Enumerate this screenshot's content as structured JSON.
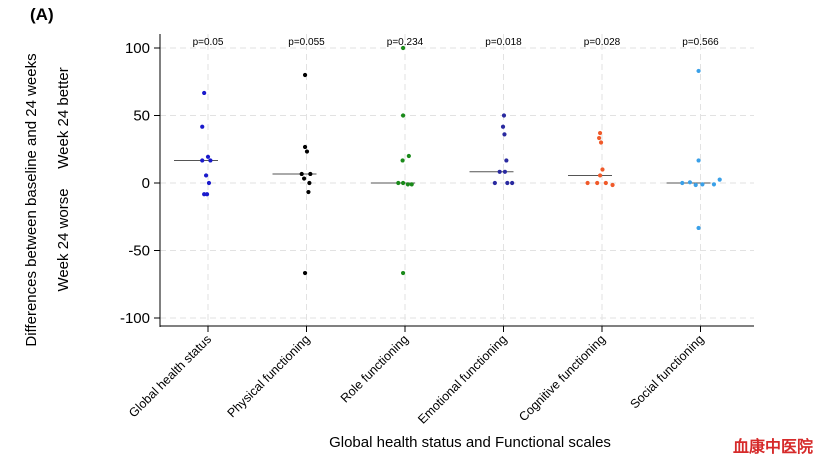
{
  "panel_label": "(A)",
  "watermark": "血康中医院",
  "colors": {
    "axis": "#000000",
    "grid": "#e2e2e2",
    "median": "#555555"
  },
  "chart_data": {
    "type": "scatter",
    "title": "",
    "xlabel": "Global health status and Functional scales",
    "ylabel": "Differences between baseline and 24 weeks",
    "ylabel_better": "Week 24 better",
    "ylabel_worse": "Week 24 worse",
    "ylim": [
      -105,
      105
    ],
    "yticks": [
      100,
      50,
      0,
      -50,
      -100
    ],
    "grid": true,
    "categories": [
      {
        "name": "Global health status",
        "color": "#1a1acc",
        "p_value": "p=0.05",
        "median": 16.7,
        "points": [
          {
            "dx": -0.08,
            "y": 66.7
          },
          {
            "dx": -0.12,
            "y": 41.7
          },
          {
            "dx": 0.0,
            "y": 19.4
          },
          {
            "dx": 0.05,
            "y": 16.7
          },
          {
            "dx": -0.12,
            "y": 16.7
          },
          {
            "dx": -0.04,
            "y": 5.6
          },
          {
            "dx": 0.02,
            "y": 0.0
          },
          {
            "dx": -0.08,
            "y": -8.3
          },
          {
            "dx": -0.02,
            "y": -8.3
          }
        ]
      },
      {
        "name": "Physical functioning",
        "color": "#000000",
        "p_value": "p=0.055",
        "median": 6.7,
        "points": [
          {
            "dx": -0.03,
            "y": 80.0
          },
          {
            "dx": -0.03,
            "y": 26.7
          },
          {
            "dx": 0.01,
            "y": 23.3
          },
          {
            "dx": -0.1,
            "y": 6.7
          },
          {
            "dx": -0.05,
            "y": 3.3
          },
          {
            "dx": 0.08,
            "y": 6.7
          },
          {
            "dx": 0.06,
            "y": 0.0
          },
          {
            "dx": 0.04,
            "y": -6.7
          },
          {
            "dx": -0.03,
            "y": -66.7
          }
        ]
      },
      {
        "name": "Role functioning",
        "color": "#1a8a1a",
        "p_value": "p=0.234",
        "median": 0.0,
        "points": [
          {
            "dx": -0.04,
            "y": 100.0
          },
          {
            "dx": -0.04,
            "y": 50.0
          },
          {
            "dx": 0.08,
            "y": 20.0
          },
          {
            "dx": -0.05,
            "y": 16.7
          },
          {
            "dx": -0.14,
            "y": 0.0
          },
          {
            "dx": -0.04,
            "y": 0.0
          },
          {
            "dx": 0.06,
            "y": -1.0
          },
          {
            "dx": 0.14,
            "y": -1.0
          },
          {
            "dx": -0.04,
            "y": -66.7
          }
        ]
      },
      {
        "name": "Emotional functioning",
        "color": "#2a2aa0",
        "p_value": "p=0.018",
        "median": 8.3,
        "points": [
          {
            "dx": 0.01,
            "y": 50.0
          },
          {
            "dx": -0.01,
            "y": 41.7
          },
          {
            "dx": 0.02,
            "y": 36.0
          },
          {
            "dx": 0.06,
            "y": 16.7
          },
          {
            "dx": -0.08,
            "y": 8.3
          },
          {
            "dx": 0.03,
            "y": 8.3
          },
          {
            "dx": -0.18,
            "y": 0.0
          },
          {
            "dx": 0.08,
            "y": 0.0
          },
          {
            "dx": 0.18,
            "y": 0.0
          }
        ]
      },
      {
        "name": "Cognitive functioning",
        "color": "#f05a2a",
        "p_value": "p=0.028",
        "median": 5.6,
        "points": [
          {
            "dx": -0.04,
            "y": 37.0
          },
          {
            "dx": -0.06,
            "y": 33.3
          },
          {
            "dx": -0.02,
            "y": 30.0
          },
          {
            "dx": 0.01,
            "y": 10.0
          },
          {
            "dx": -0.04,
            "y": 5.6
          },
          {
            "dx": -0.3,
            "y": 0.0
          },
          {
            "dx": -0.1,
            "y": 0.0
          },
          {
            "dx": 0.08,
            "y": 0.0
          },
          {
            "dx": 0.22,
            "y": -1.5
          }
        ]
      },
      {
        "name": "Social functioning",
        "color": "#3aa0e8",
        "p_value": "p=0.566",
        "median": 0.0,
        "points": [
          {
            "dx": -0.04,
            "y": 83.0
          },
          {
            "dx": -0.04,
            "y": 16.7
          },
          {
            "dx": 0.4,
            "y": 2.5
          },
          {
            "dx": -0.38,
            "y": 0.0
          },
          {
            "dx": -0.22,
            "y": 0.5
          },
          {
            "dx": -0.1,
            "y": -1.5
          },
          {
            "dx": 0.04,
            "y": -1.0
          },
          {
            "dx": 0.28,
            "y": -1.0
          },
          {
            "dx": -0.04,
            "y": -33.3
          }
        ]
      }
    ]
  }
}
